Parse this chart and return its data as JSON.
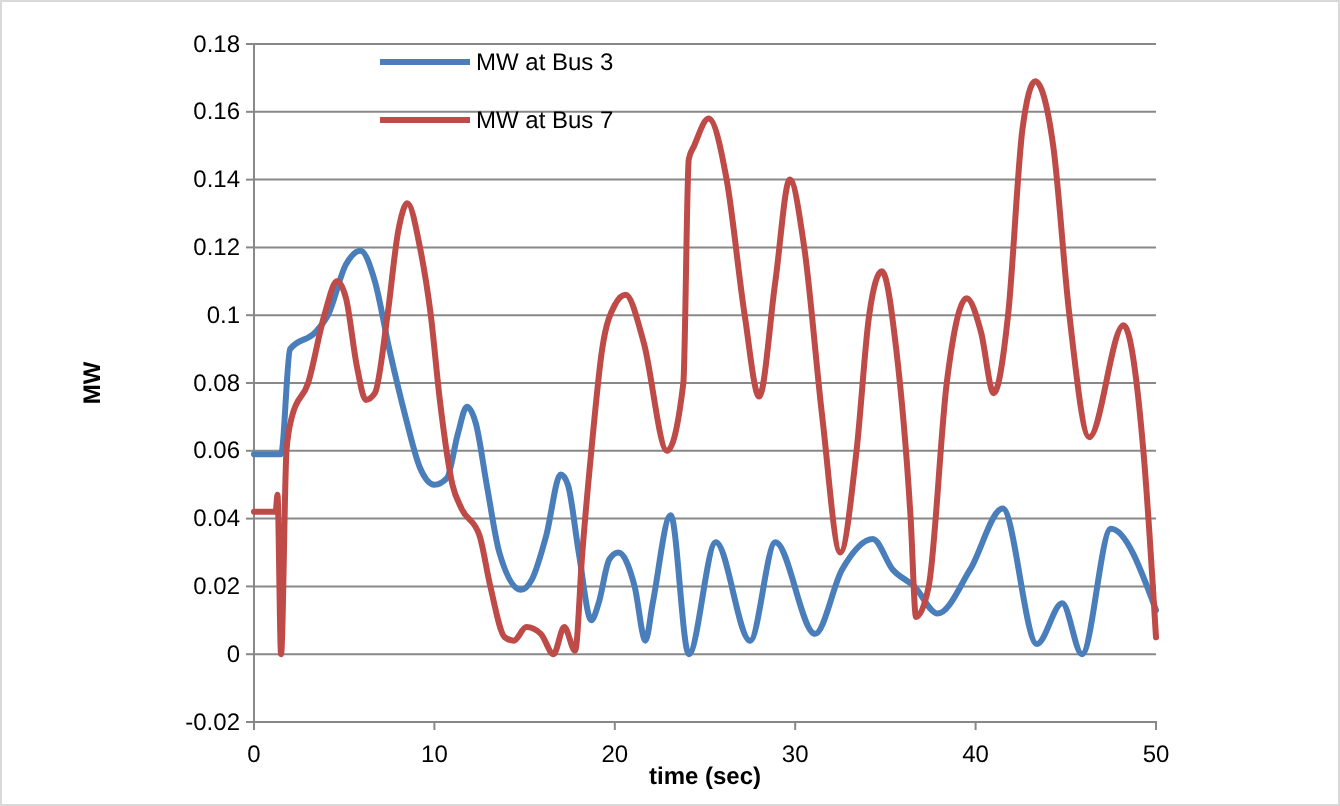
{
  "chart_data": {
    "type": "line",
    "xlabel": "time (sec)",
    "ylabel": "MW",
    "xlim": [
      0,
      50
    ],
    "ylim": [
      -0.02,
      0.18
    ],
    "xticks": [
      0,
      10,
      20,
      30,
      40,
      50
    ],
    "yticks": [
      -0.02,
      0,
      0.02,
      0.04,
      0.06,
      0.08,
      0.1,
      0.12,
      0.14,
      0.16,
      0.18
    ],
    "grid": "y",
    "legend": "top left",
    "marker": "none",
    "line_style": "solid",
    "series": [
      {
        "name": "MW at Bus 3",
        "color": "#4a7ebb",
        "x": [
          0,
          1.5,
          2,
          3.4,
          4.1,
          5.1,
          5.9,
          6.7,
          7.5,
          8.4,
          9.2,
          10,
          10.7,
          11.3,
          11.8,
          12.3,
          12.9,
          13.6,
          14.8,
          15.4,
          16.2,
          17,
          17.4,
          18,
          18.7,
          19.1,
          19.7,
          20.2,
          21.1,
          21.7,
          22.1,
          23.1,
          24.1,
          25.6,
          27.5,
          28.9,
          31.1,
          32.6,
          34.3,
          35.4,
          36.6,
          37.9,
          39.7,
          41.5,
          43.4,
          44.8,
          45.9,
          47.5,
          50
        ],
        "values": [
          0.059,
          0.059,
          0.09,
          0.095,
          0.1,
          0.115,
          0.119,
          0.11,
          0.09,
          0.07,
          0.055,
          0.05,
          0.052,
          0.065,
          0.073,
          0.068,
          0.05,
          0.03,
          0.019,
          0.022,
          0.035,
          0.053,
          0.05,
          0.03,
          0.01,
          0.015,
          0.028,
          0.03,
          0.02,
          0.004,
          0.015,
          0.041,
          0,
          0.033,
          0.004,
          0.033,
          0.006,
          0.025,
          0.034,
          0.025,
          0.02,
          0.012,
          0.025,
          0.043,
          0.003,
          0.015,
          0,
          0.037,
          0.013
        ]
      },
      {
        "name": "MW at Bus 7",
        "color": "#be4b48",
        "x": [
          0,
          1.2,
          1.3,
          1.5,
          1.8,
          2.1,
          3,
          3.9,
          4.6,
          5.1,
          5.7,
          6.2,
          6.7,
          7.4,
          8,
          8.5,
          9.2,
          9.8,
          10.3,
          11,
          11.5,
          12.5,
          13.1,
          13.9,
          14.4,
          15.1,
          15.9,
          16.6,
          17.2,
          17.8,
          18.2,
          18.7,
          19.3,
          20,
          20.6,
          21.6,
          22.9,
          23.8,
          24.1,
          24.4,
          25.2,
          26.2,
          27.2,
          28,
          28.9,
          29.7,
          30.5,
          31.5,
          32.5,
          33.4,
          34.1,
          34.8,
          35.6,
          36.4,
          36.7,
          37.4,
          38.4,
          39.5,
          40.3,
          41,
          41.8,
          42.6,
          43.3,
          44.3,
          45.2,
          46.3,
          48.2,
          49.3,
          50
        ],
        "values": [
          0.042,
          0.042,
          0.047,
          0,
          0.06,
          0.07,
          0.08,
          0.1,
          0.11,
          0.105,
          0.085,
          0.075,
          0.077,
          0.1,
          0.125,
          0.133,
          0.12,
          0.1,
          0.075,
          0.05,
          0.043,
          0.035,
          0.02,
          0.005,
          0.004,
          0.008,
          0.006,
          0,
          0.008,
          0.001,
          0.03,
          0.06,
          0.09,
          0.103,
          0.106,
          0.092,
          0.06,
          0.08,
          0.146,
          0.15,
          0.158,
          0.14,
          0.1,
          0.076,
          0.11,
          0.14,
          0.12,
          0.07,
          0.03,
          0.06,
          0.1,
          0.113,
          0.09,
          0.04,
          0.011,
          0.02,
          0.08,
          0.105,
          0.095,
          0.077,
          0.1,
          0.155,
          0.169,
          0.15,
          0.1,
          0.064,
          0.097,
          0.06,
          0.005
        ]
      }
    ]
  }
}
